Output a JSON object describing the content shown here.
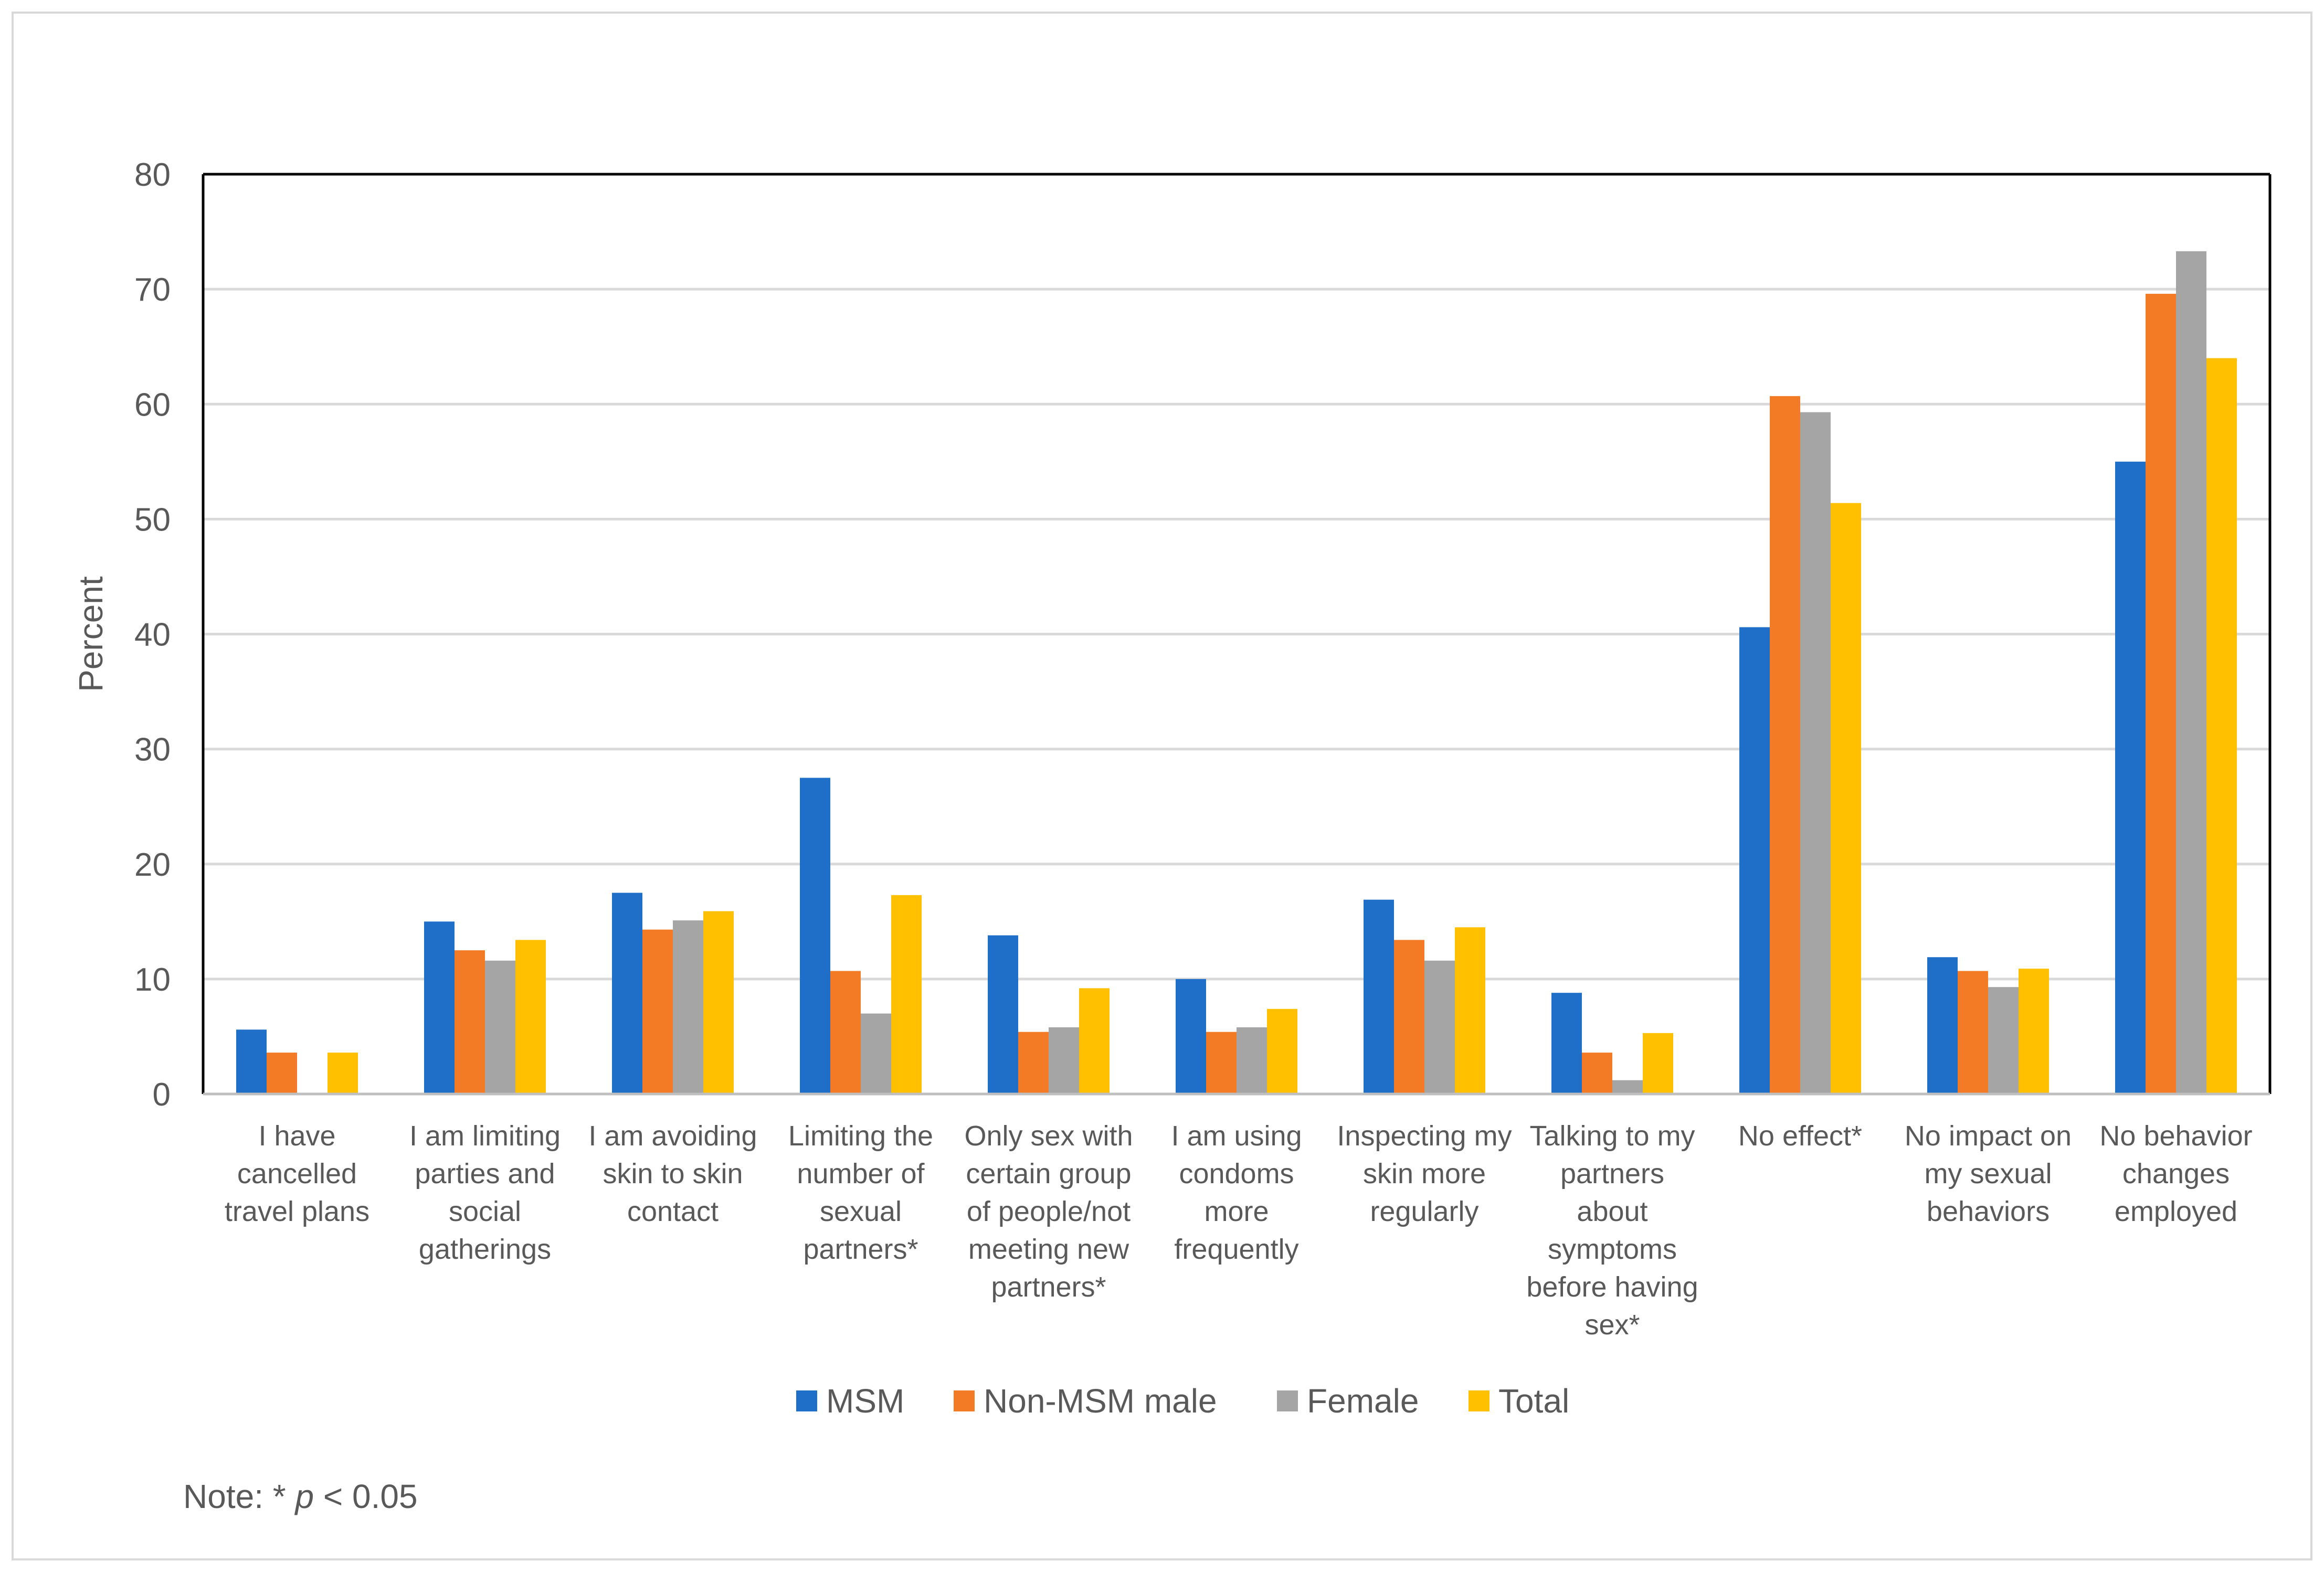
{
  "chart_data": {
    "type": "bar",
    "title": "",
    "xlabel": "",
    "ylabel": "Percent",
    "ylim": [
      0,
      80
    ],
    "yticks": [
      0,
      10,
      20,
      30,
      40,
      50,
      60,
      70,
      80
    ],
    "grid": true,
    "legend_position": "bottom",
    "categories": [
      [
        "I have",
        "cancelled",
        "travel plans"
      ],
      [
        "I am limiting",
        "parties and",
        "social",
        "gatherings"
      ],
      [
        "I am avoiding",
        "skin  to skin",
        "contact"
      ],
      [
        "Limiting the",
        "number of",
        "sexual",
        "partners*"
      ],
      [
        "Only sex with",
        "certain group",
        "of people/not",
        "meeting new",
        "partners*"
      ],
      [
        "I am using",
        "condoms",
        "more",
        "frequently"
      ],
      [
        "Inspecting my",
        "skin more",
        "regularly"
      ],
      [
        "Talking to my",
        "partners",
        "about",
        "symptoms",
        "before having",
        "sex*"
      ],
      [
        "No effect*"
      ],
      [
        "No impact on",
        "my sexual",
        "behaviors"
      ],
      [
        "No behavior",
        "changes",
        "employed"
      ]
    ],
    "series": [
      {
        "name": "MSM",
        "color": "#1f6fc8",
        "values": [
          5.6,
          15.0,
          17.5,
          27.5,
          13.8,
          10.0,
          16.9,
          8.8,
          40.6,
          11.9,
          55.0
        ]
      },
      {
        "name": "Non-MSM male",
        "color": "#f47b25",
        "values": [
          3.6,
          12.5,
          14.3,
          10.7,
          5.4,
          5.4,
          13.4,
          3.6,
          60.7,
          10.7,
          69.6
        ]
      },
      {
        "name": "Female",
        "color": "#a5a5a5",
        "values": [
          0,
          11.6,
          15.1,
          7.0,
          5.8,
          5.8,
          11.6,
          1.2,
          59.3,
          9.3,
          73.3
        ]
      },
      {
        "name": "Total",
        "color": "#ffc000",
        "values": [
          3.6,
          13.4,
          15.9,
          17.3,
          9.2,
          7.4,
          14.5,
          5.3,
          51.4,
          10.9,
          64.0
        ]
      }
    ],
    "note": {
      "prefix": "Note: * ",
      "italic": "p",
      "suffix": " < 0.05"
    }
  }
}
